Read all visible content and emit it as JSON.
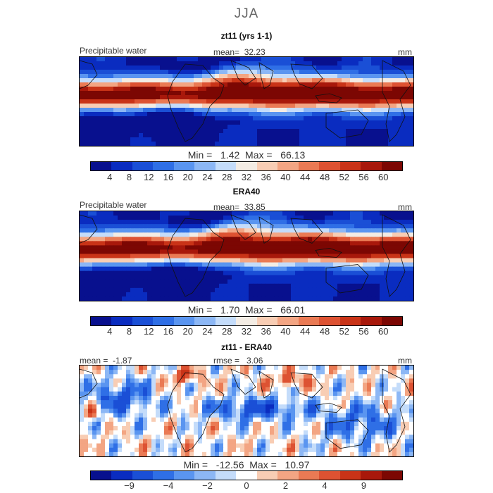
{
  "season": "JJA",
  "palette_abs": [
    "#08108e",
    "#0a2cc0",
    "#1a4fd6",
    "#2f6fe6",
    "#5a95f0",
    "#8cb7f5",
    "#c4dcfa",
    "#f3ece4",
    "#f8cdb4",
    "#f3a583",
    "#ea7a54",
    "#dd5232",
    "#c93317",
    "#a8180b",
    "#7c0703"
  ],
  "palette_diff": [
    "#08108e",
    "#0a2cc0",
    "#1a4fd6",
    "#2f6fe6",
    "#5a95f0",
    "#8cb7f5",
    "#c4dcfa",
    "#ffffff",
    "#f8cdb4",
    "#f3a583",
    "#ea7a54",
    "#dd5232",
    "#c93317",
    "#a8180b",
    "#7c0703"
  ],
  "panels": {
    "p1": {
      "title": "zt11 (yrs 1-1)",
      "field": "Precipitable water",
      "mean_label": "mean=",
      "mean_value": "32.23",
      "unit": "mm",
      "min_label": "Min =",
      "min_value": "1.42",
      "max_label": "Max =",
      "max_value": "66.13",
      "ticks": [
        "4",
        "8",
        "12",
        "16",
        "20",
        "24",
        "28",
        "32",
        "36",
        "40",
        "44",
        "48",
        "52",
        "56",
        "60"
      ]
    },
    "p2": {
      "title": "ERA40",
      "field": "Precipitable water",
      "mean_label": "mean=",
      "mean_value": "33.85",
      "unit": "mm",
      "min_label": "Min =",
      "min_value": "1.70",
      "max_label": "Max =",
      "max_value": "66.01",
      "ticks": [
        "4",
        "8",
        "12",
        "16",
        "20",
        "24",
        "28",
        "32",
        "36",
        "40",
        "44",
        "48",
        "52",
        "56",
        "60"
      ]
    },
    "p3": {
      "title": "zt11 - ERA40",
      "mean_label": "mean =",
      "mean_value": "-1.87",
      "rmse_label": "rmse =",
      "rmse_value": "3.06",
      "unit": "mm",
      "min_label": "Min =",
      "min_value": "-12.56",
      "max_label": "Max =",
      "max_value": "10.97",
      "ticks": [
        "-9",
        "-4",
        "-2",
        "0",
        "2",
        "4",
        "9"
      ]
    }
  }
}
